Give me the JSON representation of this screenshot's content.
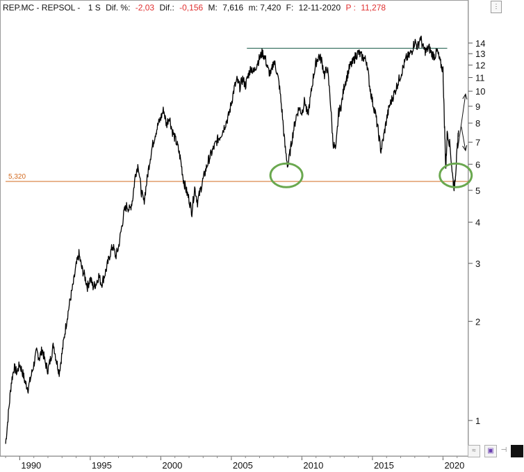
{
  "header": {
    "symbol": "REP.MC - REPSOL -",
    "period": "1 S",
    "dif_pct_label": "Dif. %:",
    "dif_pct_value": "-2,03",
    "dif_label": "Dif.:",
    "dif_value": "-0,156",
    "m_label": "M:",
    "m_value": "7,616",
    "m_close": "m: 7,420",
    "f_label": "F:",
    "f_value": "12-11-2020",
    "p_label": "P :",
    "p_value": "11,278",
    "neg_color": "#e03030",
    "text_color": "#111111"
  },
  "toolbar": {
    "corner_button_icon": "expand-icon",
    "zoom_icon": "zigzag-icon",
    "save_icon": "save-icon",
    "pin_icon": "pin-icon",
    "color_icon": "black-square-icon"
  },
  "chart_data": {
    "type": "line",
    "title": "",
    "xlabel": "",
    "ylabel": "",
    "y_scale": "log",
    "ylim": [
      0.78,
      17
    ],
    "xlim": [
      1988.8,
      2021.8
    ],
    "x_ticks": [
      "1990",
      "1995",
      "2000",
      "2005",
      "2010",
      "2015",
      "2020"
    ],
    "y_ticks": [
      "1",
      "2",
      "3",
      "4",
      "5",
      "6",
      "7",
      "8",
      "9",
      "10",
      "11",
      "12",
      "13",
      "14"
    ],
    "series": [
      {
        "color": "#000000",
        "points": [
          [
            1989.0,
            0.85
          ],
          [
            1989.2,
            1.05
          ],
          [
            1989.4,
            1.3
          ],
          [
            1989.6,
            1.45
          ],
          [
            1989.8,
            1.4
          ],
          [
            1990.0,
            1.48
          ],
          [
            1990.2,
            1.4
          ],
          [
            1990.4,
            1.3
          ],
          [
            1990.6,
            1.25
          ],
          [
            1990.8,
            1.36
          ],
          [
            1991.0,
            1.48
          ],
          [
            1991.2,
            1.62
          ],
          [
            1991.4,
            1.55
          ],
          [
            1991.6,
            1.65
          ],
          [
            1991.8,
            1.5
          ],
          [
            1992.0,
            1.42
          ],
          [
            1992.2,
            1.55
          ],
          [
            1992.4,
            1.7
          ],
          [
            1992.6,
            1.52
          ],
          [
            1992.8,
            1.4
          ],
          [
            1993.0,
            1.6
          ],
          [
            1993.2,
            1.85
          ],
          [
            1993.4,
            2.1
          ],
          [
            1993.6,
            2.35
          ],
          [
            1993.8,
            2.6
          ],
          [
            1994.0,
            2.95
          ],
          [
            1994.2,
            3.2
          ],
          [
            1994.4,
            2.9
          ],
          [
            1994.6,
            2.75
          ],
          [
            1994.8,
            2.55
          ],
          [
            1995.0,
            2.7
          ],
          [
            1995.2,
            2.55
          ],
          [
            1995.4,
            2.6
          ],
          [
            1995.6,
            2.75
          ],
          [
            1995.8,
            2.6
          ],
          [
            1996.0,
            2.75
          ],
          [
            1996.2,
            2.95
          ],
          [
            1996.4,
            3.2
          ],
          [
            1996.6,
            3.4
          ],
          [
            1996.8,
            3.15
          ],
          [
            1997.0,
            3.35
          ],
          [
            1997.2,
            3.8
          ],
          [
            1997.4,
            4.3
          ],
          [
            1997.6,
            4.5
          ],
          [
            1997.8,
            4.35
          ],
          [
            1998.0,
            4.7
          ],
          [
            1998.2,
            5.6
          ],
          [
            1998.4,
            6.0
          ],
          [
            1998.6,
            5.0
          ],
          [
            1998.8,
            4.6
          ],
          [
            1999.0,
            5.3
          ],
          [
            1999.2,
            6.1
          ],
          [
            1999.4,
            6.8
          ],
          [
            1999.6,
            7.4
          ],
          [
            1999.8,
            7.9
          ],
          [
            2000.0,
            8.3
          ],
          [
            2000.2,
            8.8
          ],
          [
            2000.4,
            7.9
          ],
          [
            2000.6,
            8.4
          ],
          [
            2000.8,
            7.6
          ],
          [
            2001.0,
            7.2
          ],
          [
            2001.2,
            6.8
          ],
          [
            2001.4,
            6.2
          ],
          [
            2001.6,
            5.4
          ],
          [
            2001.8,
            5.0
          ],
          [
            2002.0,
            4.7
          ],
          [
            2002.2,
            4.3
          ],
          [
            2002.4,
            5.1
          ],
          [
            2002.6,
            4.6
          ],
          [
            2002.8,
            5.0
          ],
          [
            2003.0,
            5.4
          ],
          [
            2003.2,
            5.8
          ],
          [
            2003.4,
            6.2
          ],
          [
            2003.6,
            6.5
          ],
          [
            2003.8,
            6.8
          ],
          [
            2004.0,
            7.1
          ],
          [
            2004.2,
            7.3
          ],
          [
            2004.4,
            7.6
          ],
          [
            2004.6,
            8.0
          ],
          [
            2004.8,
            8.4
          ],
          [
            2005.0,
            9.2
          ],
          [
            2005.2,
            10.2
          ],
          [
            2005.4,
            10.8
          ],
          [
            2005.6,
            10.3
          ],
          [
            2005.8,
            10.9
          ],
          [
            2006.0,
            10.4
          ],
          [
            2006.2,
            11.2
          ],
          [
            2006.4,
            11.8
          ],
          [
            2006.6,
            11.4
          ],
          [
            2006.8,
            12.1
          ],
          [
            2007.0,
            12.6
          ],
          [
            2007.2,
            13.1
          ],
          [
            2007.4,
            12.6
          ],
          [
            2007.6,
            11.6
          ],
          [
            2007.8,
            11.2
          ],
          [
            2008.0,
            12.4
          ],
          [
            2008.2,
            11.6
          ],
          [
            2008.4,
            10.4
          ],
          [
            2008.6,
            8.6
          ],
          [
            2008.8,
            6.8
          ],
          [
            2009.0,
            5.9
          ],
          [
            2009.2,
            6.7
          ],
          [
            2009.4,
            7.6
          ],
          [
            2009.6,
            8.4
          ],
          [
            2009.8,
            8.9
          ],
          [
            2010.0,
            8.6
          ],
          [
            2010.2,
            9.4
          ],
          [
            2010.4,
            8.4
          ],
          [
            2010.6,
            9.5
          ],
          [
            2010.8,
            11.0
          ],
          [
            2011.0,
            12.2
          ],
          [
            2011.2,
            12.8
          ],
          [
            2011.4,
            12.4
          ],
          [
            2011.6,
            11.2
          ],
          [
            2011.8,
            11.8
          ],
          [
            2012.0,
            9.6
          ],
          [
            2012.2,
            7.0
          ],
          [
            2012.4,
            6.6
          ],
          [
            2012.6,
            8.6
          ],
          [
            2012.8,
            9.1
          ],
          [
            2013.0,
            10.4
          ],
          [
            2013.2,
            11.1
          ],
          [
            2013.4,
            11.9
          ],
          [
            2013.6,
            12.2
          ],
          [
            2013.8,
            12.8
          ],
          [
            2014.0,
            13.1
          ],
          [
            2014.2,
            12.8
          ],
          [
            2014.4,
            12.6
          ],
          [
            2014.6,
            12.3
          ],
          [
            2014.8,
            10.4
          ],
          [
            2015.0,
            9.3
          ],
          [
            2015.2,
            8.6
          ],
          [
            2015.4,
            7.6
          ],
          [
            2015.6,
            6.6
          ],
          [
            2015.8,
            7.3
          ],
          [
            2016.0,
            8.2
          ],
          [
            2016.2,
            9.0
          ],
          [
            2016.4,
            9.5
          ],
          [
            2016.6,
            10.0
          ],
          [
            2016.8,
            10.6
          ],
          [
            2017.0,
            11.2
          ],
          [
            2017.2,
            11.9
          ],
          [
            2017.4,
            12.6
          ],
          [
            2017.6,
            12.8
          ],
          [
            2017.8,
            13.3
          ],
          [
            2018.0,
            14.2
          ],
          [
            2018.2,
            13.6
          ],
          [
            2018.4,
            14.6
          ],
          [
            2018.6,
            13.5
          ],
          [
            2018.8,
            13.2
          ],
          [
            2019.0,
            13.6
          ],
          [
            2019.2,
            13.0
          ],
          [
            2019.4,
            12.8
          ],
          [
            2019.6,
            13.2
          ],
          [
            2019.8,
            12.2
          ],
          [
            2020.0,
            11.6
          ],
          [
            2020.1,
            8.0
          ],
          [
            2020.2,
            5.8
          ],
          [
            2020.3,
            7.6
          ],
          [
            2020.5,
            6.8
          ],
          [
            2020.7,
            5.4
          ],
          [
            2020.8,
            5.1
          ],
          [
            2020.9,
            5.7
          ],
          [
            2021.0,
            6.6
          ],
          [
            2021.1,
            7.6
          ]
        ]
      }
    ],
    "annotations": {
      "support_level": 5.32,
      "support_label": "5,320",
      "support_color": "#d2691e",
      "resistance_level": 13.5,
      "resistance_x": [
        2006.1,
        2020.3
      ],
      "resistance_color": "#2f6b5a",
      "circles": [
        {
          "x": 2008.9,
          "y": 5.55,
          "color": "#6aa84f"
        },
        {
          "x": 2020.9,
          "y": 5.55,
          "color": "#6aa84f"
        }
      ],
      "arrows": [
        {
          "from": [
            2021.05,
            6.7
          ],
          "to": [
            2021.6,
            9.8
          ],
          "color": "#111111"
        },
        {
          "from": [
            2021.3,
            7.8
          ],
          "to": [
            2021.6,
            6.6
          ],
          "color": "#111111"
        }
      ]
    }
  }
}
